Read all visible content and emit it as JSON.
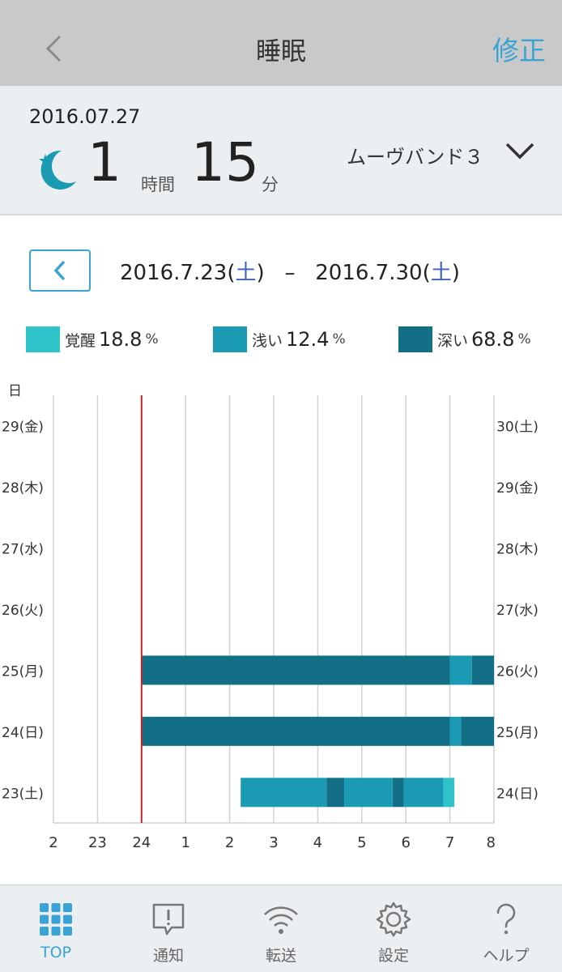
{
  "nav": {
    "title": "睡眠",
    "edit_label": "修正"
  },
  "summary": {
    "date": "2016.07.27",
    "hours": "1",
    "hours_unit": "時間",
    "minutes": "15",
    "minutes_unit": "分",
    "device": "ムーヴバンド３"
  },
  "range": {
    "start": "2016.7.23",
    "start_dow": "土",
    "separator": "–",
    "end": "2016.7.30",
    "end_dow": "土"
  },
  "legend": [
    {
      "label": "覚醒",
      "value": "18.8",
      "unit": "%",
      "color": "#2ec4c9"
    },
    {
      "label": "浅い",
      "value": "12.4",
      "unit": "%",
      "color": "#1b9bb3"
    },
    {
      "label": "深い",
      "value": "68.8",
      "unit": "%",
      "color": "#136f86"
    }
  ],
  "chart_data": {
    "type": "bar",
    "orientation": "horizontal-timeline",
    "axis_title": "日",
    "x_ticks": [
      "2",
      "23",
      "24",
      "1",
      "2",
      "3",
      "4",
      "5",
      "6",
      "7",
      "8"
    ],
    "x_range_hours": [
      22,
      32
    ],
    "reference_line_hour": 24,
    "reference_line_color": "#cc2222",
    "rows_left": [
      "29(金)",
      "28(木)",
      "27(水)",
      "26(火)",
      "25(月)",
      "24(日)",
      "23(土)"
    ],
    "rows_right": [
      "30(土)",
      "29(金)",
      "28(木)",
      "27(水)",
      "26(火)",
      "25(月)",
      "24(日)"
    ],
    "colors": {
      "awake": "#2ec4c9",
      "light": "#1b9bb3",
      "deep": "#136f86"
    },
    "records": [
      {
        "row": "25(月)",
        "segments": [
          {
            "start": 24.0,
            "end": 31.0,
            "stage": "deep"
          },
          {
            "start": 31.0,
            "end": 31.5,
            "stage": "light"
          },
          {
            "start": 31.5,
            "end": 32.0,
            "stage": "deep"
          }
        ]
      },
      {
        "row": "24(日)",
        "segments": [
          {
            "start": 24.0,
            "end": 31.0,
            "stage": "deep"
          },
          {
            "start": 31.0,
            "end": 31.25,
            "stage": "light"
          },
          {
            "start": 31.25,
            "end": 32.0,
            "stage": "deep"
          }
        ]
      },
      {
        "row": "23(土)",
        "segments": [
          {
            "start": 26.25,
            "end": 28.2,
            "stage": "light"
          },
          {
            "start": 28.2,
            "end": 28.6,
            "stage": "deep"
          },
          {
            "start": 28.6,
            "end": 29.7,
            "stage": "light"
          },
          {
            "start": 29.7,
            "end": 29.95,
            "stage": "deep"
          },
          {
            "start": 29.95,
            "end": 30.85,
            "stage": "light"
          },
          {
            "start": 30.85,
            "end": 31.1,
            "stage": "awake"
          }
        ]
      }
    ]
  },
  "tabs": [
    {
      "label": "TOP",
      "icon": "grid-icon",
      "active": true
    },
    {
      "label": "通知",
      "icon": "notification-icon",
      "active": false
    },
    {
      "label": "転送",
      "icon": "wifi-icon",
      "active": false
    },
    {
      "label": "設定",
      "icon": "gear-icon",
      "active": false
    },
    {
      "label": "ヘルプ",
      "icon": "help-icon",
      "active": false
    }
  ]
}
